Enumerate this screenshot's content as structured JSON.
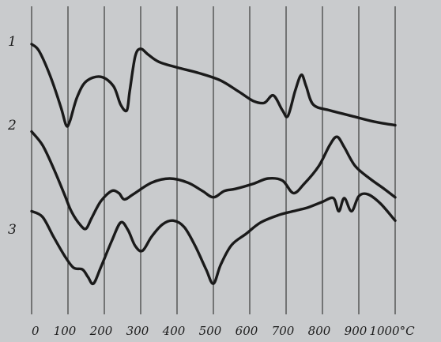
{
  "chart_data": {
    "type": "line",
    "title": "",
    "xlabel": "",
    "ylabel": "",
    "x_unit": "°C",
    "xlim": [
      0,
      1000
    ],
    "x_ticks": [
      {
        "value": 0,
        "label": "0"
      },
      {
        "value": 100,
        "label": "100"
      },
      {
        "value": 200,
        "label": "200"
      },
      {
        "value": 300,
        "label": "300"
      },
      {
        "value": 400,
        "label": "400"
      },
      {
        "value": 500,
        "label": "500"
      },
      {
        "value": 600,
        "label": "600"
      },
      {
        "value": 700,
        "label": "700"
      },
      {
        "value": 800,
        "label": "800"
      },
      {
        "value": 900,
        "label": "900"
      },
      {
        "value": 1000,
        "label": "1000°C"
      }
    ],
    "grid": "vertical lines at each 100 °C",
    "y_axis": "relative (no scale printed)",
    "series": [
      {
        "name": "1",
        "points": [
          [
            0,
            0.95
          ],
          [
            20,
            0.88
          ],
          [
            50,
            0.62
          ],
          [
            80,
            0.28
          ],
          [
            95,
            0.08
          ],
          [
            105,
            0.12
          ],
          [
            125,
            0.38
          ],
          [
            150,
            0.55
          ],
          [
            190,
            0.6
          ],
          [
            225,
            0.5
          ],
          [
            245,
            0.3
          ],
          [
            262,
            0.24
          ],
          [
            270,
            0.45
          ],
          [
            285,
            0.82
          ],
          [
            300,
            0.9
          ],
          [
            320,
            0.84
          ],
          [
            350,
            0.76
          ],
          [
            400,
            0.7
          ],
          [
            460,
            0.64
          ],
          [
            520,
            0.56
          ],
          [
            570,
            0.44
          ],
          [
            610,
            0.34
          ],
          [
            640,
            0.32
          ],
          [
            665,
            0.4
          ],
          [
            690,
            0.24
          ],
          [
            705,
            0.18
          ],
          [
            725,
            0.45
          ],
          [
            742,
            0.62
          ],
          [
            755,
            0.5
          ],
          [
            775,
            0.3
          ],
          [
            820,
            0.24
          ],
          [
            880,
            0.18
          ],
          [
            940,
            0.12
          ],
          [
            1000,
            0.08
          ]
        ]
      },
      {
        "name": "2",
        "points": [
          [
            0,
            0.95
          ],
          [
            30,
            0.82
          ],
          [
            60,
            0.6
          ],
          [
            90,
            0.35
          ],
          [
            110,
            0.18
          ],
          [
            135,
            0.05
          ],
          [
            150,
            0.02
          ],
          [
            165,
            0.12
          ],
          [
            190,
            0.28
          ],
          [
            220,
            0.38
          ],
          [
            240,
            0.36
          ],
          [
            255,
            0.3
          ],
          [
            280,
            0.35
          ],
          [
            330,
            0.46
          ],
          [
            380,
            0.5
          ],
          [
            430,
            0.46
          ],
          [
            470,
            0.38
          ],
          [
            500,
            0.32
          ],
          [
            530,
            0.38
          ],
          [
            560,
            0.4
          ],
          [
            610,
            0.45
          ],
          [
            650,
            0.5
          ],
          [
            690,
            0.48
          ],
          [
            720,
            0.36
          ],
          [
            750,
            0.45
          ],
          [
            790,
            0.62
          ],
          [
            820,
            0.82
          ],
          [
            840,
            0.9
          ],
          [
            860,
            0.8
          ],
          [
            890,
            0.62
          ],
          [
            930,
            0.5
          ],
          [
            970,
            0.4
          ],
          [
            1000,
            0.32
          ]
        ]
      },
      {
        "name": "3",
        "points": [
          [
            0,
            0.82
          ],
          [
            30,
            0.76
          ],
          [
            60,
            0.55
          ],
          [
            90,
            0.35
          ],
          [
            115,
            0.22
          ],
          [
            140,
            0.2
          ],
          [
            155,
            0.12
          ],
          [
            170,
            0.05
          ],
          [
            190,
            0.22
          ],
          [
            220,
            0.5
          ],
          [
            245,
            0.7
          ],
          [
            265,
            0.62
          ],
          [
            285,
            0.45
          ],
          [
            305,
            0.4
          ],
          [
            330,
            0.55
          ],
          [
            360,
            0.68
          ],
          [
            390,
            0.72
          ],
          [
            420,
            0.65
          ],
          [
            450,
            0.45
          ],
          [
            480,
            0.2
          ],
          [
            500,
            0.05
          ],
          [
            520,
            0.25
          ],
          [
            550,
            0.46
          ],
          [
            590,
            0.58
          ],
          [
            630,
            0.7
          ],
          [
            680,
            0.78
          ],
          [
            720,
            0.82
          ],
          [
            760,
            0.86
          ],
          [
            800,
            0.92
          ],
          [
            830,
            0.96
          ],
          [
            845,
            0.82
          ],
          [
            860,
            0.96
          ],
          [
            880,
            0.82
          ],
          [
            900,
            0.98
          ],
          [
            925,
            1.0
          ],
          [
            960,
            0.9
          ],
          [
            1000,
            0.72
          ]
        ]
      }
    ]
  }
}
